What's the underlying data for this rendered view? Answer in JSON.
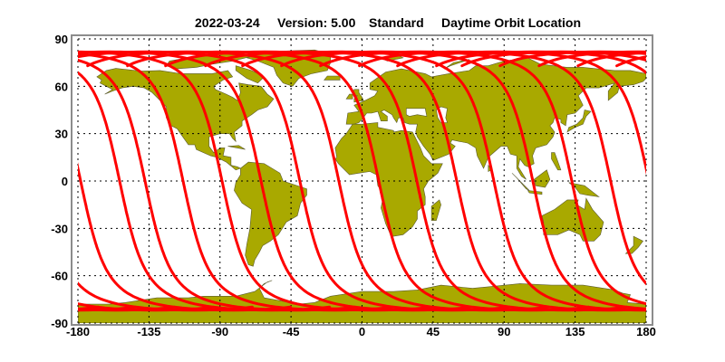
{
  "title": {
    "date": "2022-03-24",
    "version": "Version: 5.00",
    "product": "Standard",
    "description": "Daytime Orbit Location"
  },
  "colors": {
    "land": "#a9a900",
    "coastline": "#5a5a30",
    "orbit": "#ff0000",
    "ocean": "#ffffff",
    "grid": "#000000",
    "frame": "#8c8c8c"
  },
  "axes": {
    "x_ticks": [
      "-180",
      "-135",
      "-90",
      "-45",
      "0",
      "45",
      "90",
      "135",
      "180"
    ],
    "y_ticks": [
      "90",
      "60",
      "30",
      "0",
      "-30",
      "-60",
      "-90"
    ],
    "x_range": [
      -180,
      180
    ],
    "y_range": [
      -90,
      90
    ],
    "grid": true,
    "projection": "equirectangular"
  },
  "orbit_tracks": {
    "equator_crossing_longitudes": [
      -178.3,
      -153.6,
      -137.5,
      -113.4,
      -88.7,
      -64.0,
      -39.4,
      -14.7,
      10.6,
      34.7,
      60.0,
      83.5,
      108.2,
      132.9,
      157.5
    ],
    "max_latitude": 81.8
  }
}
